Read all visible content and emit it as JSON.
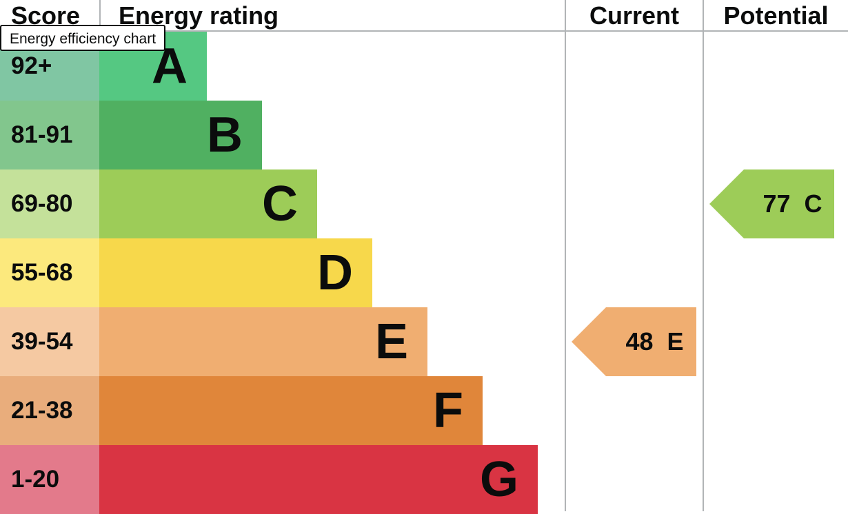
{
  "headers": {
    "score": "Score",
    "rating": "Energy rating",
    "current": "Current",
    "potential": "Potential"
  },
  "tooltip": "Energy efficiency chart",
  "chart_data": {
    "type": "bar",
    "categories": [
      "A",
      "B",
      "C",
      "D",
      "E",
      "F",
      "G"
    ],
    "score_ranges": [
      "92+",
      "81-91",
      "69-80",
      "55-68",
      "39-54",
      "21-38",
      "1-20"
    ],
    "band_colors": [
      "#55c882",
      "#50b061",
      "#9dcc58",
      "#f7d84b",
      "#f0ae71",
      "#e0863a",
      "#d93443"
    ],
    "score_colors": [
      "#80c6a3",
      "#82c68d",
      "#c4e19a",
      "#fce97d",
      "#f5c9a2",
      "#e9ad7c",
      "#e37a8b"
    ],
    "band_values": [
      1,
      2,
      3,
      4,
      5,
      6,
      7
    ],
    "current": {
      "score": "48",
      "rating": "E",
      "color": "#f0ae71"
    },
    "potential": {
      "score": "77",
      "rating": "C",
      "color": "#9dcc58"
    }
  }
}
